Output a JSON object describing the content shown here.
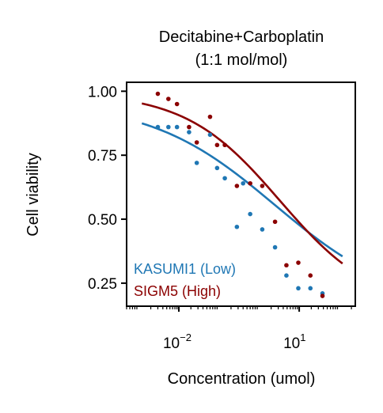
{
  "chart_data": {
    "type": "scatter",
    "title": "Decitabine+Carboplatin",
    "subtitle": "(1:1 mol/mol)",
    "xlabel": "Concentration (umol)",
    "ylabel": "Cell viability",
    "xscale": "log",
    "xlim": [
      0.0005,
      250
    ],
    "ylim": [
      0.16,
      1.035
    ],
    "yticks": [
      {
        "value": 1.0,
        "label": "1.00"
      },
      {
        "value": 0.75,
        "label": "0.75"
      },
      {
        "value": 0.5,
        "label": "0.50"
      },
      {
        "value": 0.25,
        "label": "0.25"
      }
    ],
    "xticks": [
      {
        "value": 0.01,
        "base": "10",
        "exp": "−2"
      },
      {
        "value": 10,
        "base": "10",
        "exp": "1"
      }
    ],
    "grid": false,
    "legend_position": "bottom-left",
    "series": [
      {
        "name": "KASUMI1 (Low)",
        "color": "#1f77b4",
        "points": [
          {
            "x": 0.003,
            "y": 0.86
          },
          {
            "x": 0.0055,
            "y": 0.86
          },
          {
            "x": 0.009,
            "y": 0.86
          },
          {
            "x": 0.018,
            "y": 0.84
          },
          {
            "x": 0.028,
            "y": 0.72
          },
          {
            "x": 0.06,
            "y": 0.83
          },
          {
            "x": 0.09,
            "y": 0.7
          },
          {
            "x": 0.14,
            "y": 0.66
          },
          {
            "x": 0.28,
            "y": 0.47
          },
          {
            "x": 0.4,
            "y": 0.64
          },
          {
            "x": 0.6,
            "y": 0.52
          },
          {
            "x": 1.2,
            "y": 0.46
          },
          {
            "x": 2.5,
            "y": 0.39
          },
          {
            "x": 4.8,
            "y": 0.28
          },
          {
            "x": 9.5,
            "y": 0.23
          },
          {
            "x": 19,
            "y": 0.23
          },
          {
            "x": 38,
            "y": 0.21
          }
        ],
        "fit": {
          "top": 0.96,
          "bottom": 0.15,
          "ec50": 2.5,
          "hill": 0.28
        }
      },
      {
        "name": "SIGM5 (High)",
        "color": "#8b0000",
        "points": [
          {
            "x": 0.003,
            "y": 0.99
          },
          {
            "x": 0.0055,
            "y": 0.97
          },
          {
            "x": 0.009,
            "y": 0.95
          },
          {
            "x": 0.018,
            "y": 0.86
          },
          {
            "x": 0.028,
            "y": 0.8
          },
          {
            "x": 0.06,
            "y": 0.9
          },
          {
            "x": 0.09,
            "y": 0.79
          },
          {
            "x": 0.14,
            "y": 0.79
          },
          {
            "x": 0.28,
            "y": 0.63
          },
          {
            "x": 0.6,
            "y": 0.64
          },
          {
            "x": 1.2,
            "y": 0.63
          },
          {
            "x": 2.5,
            "y": 0.49
          },
          {
            "x": 4.8,
            "y": 0.32
          },
          {
            "x": 9.5,
            "y": 0.33
          },
          {
            "x": 19,
            "y": 0.28
          },
          {
            "x": 38,
            "y": 0.2
          }
        ],
        "fit": {
          "top": 0.995,
          "bottom": 0.15,
          "ec50": 3.3,
          "hill": 0.37
        }
      }
    ]
  }
}
